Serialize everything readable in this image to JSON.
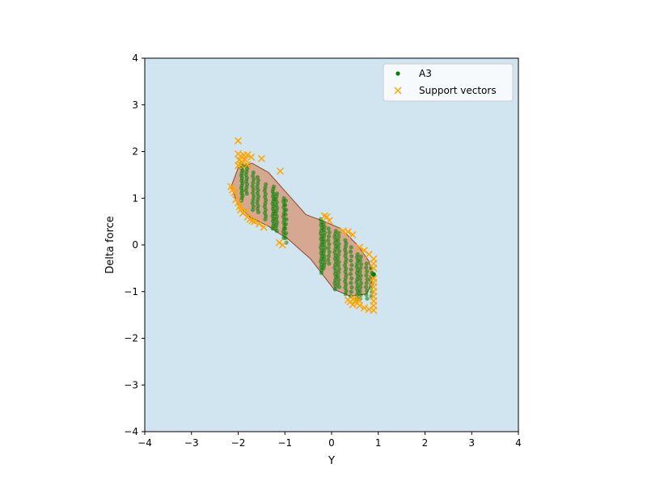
{
  "chart_data": {
    "type": "scatter",
    "title": "",
    "xlabel": "Y",
    "ylabel": "Delta force",
    "xlim": [
      -4,
      4
    ],
    "ylim": [
      -4,
      4
    ],
    "xticks": [
      "−4",
      "−3",
      "−2",
      "−1",
      "0",
      "1",
      "2",
      "3",
      "4"
    ],
    "yticks": [
      "−4",
      "−3",
      "−2",
      "−1",
      "0",
      "1",
      "2",
      "3",
      "4"
    ],
    "xtick_values": [
      -4,
      -3,
      -2,
      -1,
      0,
      1,
      2,
      3,
      4
    ],
    "ytick_values": [
      -4,
      -3,
      -2,
      -1,
      0,
      1,
      2,
      3,
      4
    ],
    "grid": false,
    "legend_position": "top-right",
    "colors": {
      "background": "#d1e5f0",
      "region_fill": "#d6a892",
      "region_edge": "#8b4a2b",
      "A3": "#008000",
      "support_vectors": "#ffa500"
    },
    "decision_region": [
      [
        -2.0,
        1.65
      ],
      [
        -1.7,
        1.75
      ],
      [
        -1.35,
        1.55
      ],
      [
        -0.95,
        1.1
      ],
      [
        -0.55,
        0.65
      ],
      [
        -0.15,
        0.5
      ],
      [
        0.2,
        0.35
      ],
      [
        0.55,
        0.0
      ],
      [
        0.8,
        -0.35
      ],
      [
        0.9,
        -0.7
      ],
      [
        0.75,
        -1.05
      ],
      [
        0.4,
        -1.1
      ],
      [
        0.05,
        -0.95
      ],
      [
        -0.45,
        -0.3
      ],
      [
        -0.9,
        0.1
      ],
      [
        -1.35,
        0.4
      ],
      [
        -1.75,
        0.6
      ],
      [
        -2.0,
        0.85
      ],
      [
        -2.15,
        1.25
      ]
    ],
    "series": [
      {
        "name": "A3",
        "marker": "dot",
        "columns": [
          {
            "x": -1.92,
            "y_range": [
              0.95,
              1.75
            ],
            "n": 16
          },
          {
            "x": -1.82,
            "y_range": [
              1.1,
              1.7
            ],
            "n": 10
          },
          {
            "x": -1.68,
            "y_range": [
              0.75,
              1.55
            ],
            "n": 12
          },
          {
            "x": -1.58,
            "y_range": [
              0.7,
              1.45
            ],
            "n": 12
          },
          {
            "x": -1.42,
            "y_range": [
              0.55,
              1.3
            ],
            "n": 12
          },
          {
            "x": -1.25,
            "y_range": [
              0.35,
              1.25
            ],
            "n": 18
          },
          {
            "x": -1.18,
            "y_range": [
              0.3,
              1.1
            ],
            "n": 14
          },
          {
            "x": -1.02,
            "y_range": [
              0.15,
              1.0
            ],
            "n": 14
          },
          {
            "x": -0.98,
            "y_range": [
              0.05,
              0.95
            ],
            "n": 10
          },
          {
            "x": -0.22,
            "y_range": [
              -0.6,
              0.55
            ],
            "n": 20
          },
          {
            "x": -0.16,
            "y_range": [
              -0.5,
              0.45
            ],
            "n": 16
          },
          {
            "x": -0.06,
            "y_range": [
              -0.4,
              0.35
            ],
            "n": 10
          },
          {
            "x": 0.08,
            "y_range": [
              -0.95,
              0.3
            ],
            "n": 20
          },
          {
            "x": 0.15,
            "y_range": [
              -0.9,
              0.25
            ],
            "n": 16
          },
          {
            "x": 0.3,
            "y_range": [
              -1.05,
              0.1
            ],
            "n": 18
          },
          {
            "x": 0.42,
            "y_range": [
              -1.1,
              -0.05
            ],
            "n": 12
          },
          {
            "x": 0.55,
            "y_range": [
              -1.2,
              -0.2
            ],
            "n": 16
          },
          {
            "x": 0.62,
            "y_range": [
              -1.15,
              -0.25
            ],
            "n": 12
          },
          {
            "x": 0.75,
            "y_range": [
              -1.15,
              -0.4
            ],
            "n": 10
          },
          {
            "x": 0.85,
            "y_range": [
              -1.1,
              -0.5
            ],
            "n": 8
          }
        ],
        "points": [
          {
            "x": 0.9,
            "y": -0.63
          }
        ]
      },
      {
        "name": "Support vectors",
        "marker": "x",
        "points": [
          {
            "x": -2.0,
            "y": 2.23
          },
          {
            "x": -2.0,
            "y": 1.95
          },
          {
            "x": -1.95,
            "y": 1.9
          },
          {
            "x": -1.88,
            "y": 1.92
          },
          {
            "x": -1.8,
            "y": 1.93
          },
          {
            "x": -1.72,
            "y": 1.88
          },
          {
            "x": -1.98,
            "y": 1.82
          },
          {
            "x": -1.92,
            "y": 1.78
          },
          {
            "x": -1.85,
            "y": 1.83
          },
          {
            "x": -2.0,
            "y": 1.7
          },
          {
            "x": -1.95,
            "y": 1.72
          },
          {
            "x": -1.8,
            "y": 1.72
          },
          {
            "x": -1.5,
            "y": 1.85
          },
          {
            "x": -1.1,
            "y": 1.58
          },
          {
            "x": -2.15,
            "y": 1.25
          },
          {
            "x": -2.12,
            "y": 1.18
          },
          {
            "x": -2.08,
            "y": 1.12
          },
          {
            "x": -2.05,
            "y": 0.97
          },
          {
            "x": -2.0,
            "y": 0.9
          },
          {
            "x": -1.97,
            "y": 0.82
          },
          {
            "x": -1.95,
            "y": 0.75
          },
          {
            "x": -1.9,
            "y": 0.68
          },
          {
            "x": -1.85,
            "y": 0.72
          },
          {
            "x": -1.8,
            "y": 0.6
          },
          {
            "x": -1.75,
            "y": 0.55
          },
          {
            "x": -1.7,
            "y": 0.52
          },
          {
            "x": -1.65,
            "y": 0.5
          },
          {
            "x": -1.55,
            "y": 0.45
          },
          {
            "x": -1.45,
            "y": 0.38
          },
          {
            "x": -1.12,
            "y": 0.05
          },
          {
            "x": -1.05,
            "y": 0.0
          },
          {
            "x": -0.15,
            "y": 0.62
          },
          {
            "x": -0.1,
            "y": 0.6
          },
          {
            "x": -0.05,
            "y": 0.52
          },
          {
            "x": 0.25,
            "y": 0.3
          },
          {
            "x": 0.35,
            "y": 0.28
          },
          {
            "x": 0.45,
            "y": 0.22
          },
          {
            "x": 0.6,
            "y": -0.05
          },
          {
            "x": 0.7,
            "y": -0.12
          },
          {
            "x": 0.8,
            "y": -0.2
          },
          {
            "x": 0.9,
            "y": -0.3
          },
          {
            "x": 0.9,
            "y": -0.4
          },
          {
            "x": 0.9,
            "y": -0.5
          },
          {
            "x": 0.9,
            "y": -0.72
          },
          {
            "x": 0.9,
            "y": -0.8
          },
          {
            "x": 0.9,
            "y": -0.9
          },
          {
            "x": 0.9,
            "y": -1.0
          },
          {
            "x": 0.9,
            "y": -1.1
          },
          {
            "x": 0.9,
            "y": -1.2
          },
          {
            "x": 0.9,
            "y": -1.3
          },
          {
            "x": 0.9,
            "y": -1.4
          },
          {
            "x": 0.8,
            "y": -1.38
          },
          {
            "x": 0.7,
            "y": -1.35
          },
          {
            "x": 0.6,
            "y": -1.3
          },
          {
            "x": 0.55,
            "y": -1.25
          },
          {
            "x": 0.5,
            "y": -1.2
          },
          {
            "x": 0.45,
            "y": -1.28
          },
          {
            "x": 0.4,
            "y": -1.22
          },
          {
            "x": 0.35,
            "y": -1.18
          },
          {
            "x": 0.48,
            "y": -1.15
          },
          {
            "x": 0.58,
            "y": -1.18
          }
        ]
      }
    ]
  }
}
